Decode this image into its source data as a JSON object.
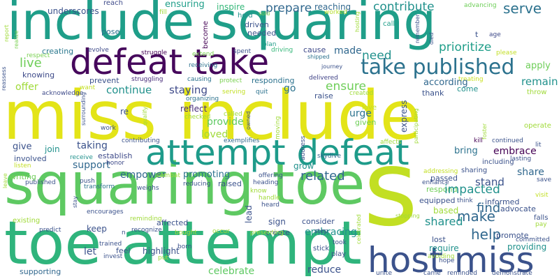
{
  "words": [
    {
      "text": "include squaring",
      "color": "#1f9e89",
      "orientation": "horizontal"
    },
    {
      "text": "miss include",
      "color": "#e3e418",
      "orientation": "horizontal"
    },
    {
      "text": "squaring toe",
      "color": "#5ec962",
      "orientation": "horizontal"
    },
    {
      "text": "toe attempt",
      "color": "#2fb47c",
      "orientation": "horizontal"
    },
    {
      "text": "s",
      "color": "#c2df23",
      "orientation": "vertical"
    },
    {
      "text": "attempt defeat",
      "color": "#1e9b8a",
      "orientation": "horizontal"
    },
    {
      "text": "defeat take",
      "color": "#46085c",
      "orientation": "horizontal"
    },
    {
      "text": "host miss",
      "color": "#3b528b",
      "orientation": "horizontal"
    },
    {
      "text": "take published",
      "color": "#2c728e",
      "orientation": "horizontal"
    },
    {
      "text": "prepare",
      "color": "#31688e",
      "orientation": "horizontal"
    },
    {
      "text": "contribute",
      "color": "#21918c",
      "orientation": "horizontal"
    },
    {
      "text": "serve",
      "color": "#2c728e",
      "orientation": "horizontal"
    },
    {
      "text": "ensuring",
      "color": "#1f9e89",
      "orientation": "horizontal"
    },
    {
      "text": "inspire",
      "color": "#35b779",
      "orientation": "horizontal"
    },
    {
      "text": "reaching",
      "color": "#31688e",
      "orientation": "horizontal"
    },
    {
      "text": "underscores",
      "color": "#3b528b",
      "orientation": "horizontal"
    },
    {
      "text": "reach",
      "color": "#3e4a89",
      "orientation": "horizontal"
    },
    {
      "text": "call",
      "color": "#1f9e89",
      "orientation": "horizontal"
    },
    {
      "text": "advancing",
      "color": "#6ece58",
      "orientation": "horizontal"
    },
    {
      "text": "age",
      "color": "#3e4989",
      "orientation": "horizontal"
    },
    {
      "text": "hold",
      "color": "#21918c",
      "orientation": "horizontal"
    },
    {
      "text": "sold",
      "color": "#7ad151",
      "orientation": "horizontal"
    },
    {
      "text": "worked",
      "color": "#b5de2b",
      "orientation": "horizontal"
    },
    {
      "text": "fill",
      "color": "#a0da39",
      "orientation": "horizontal"
    },
    {
      "text": "driven",
      "color": "#3b528b",
      "orientation": "horizontal"
    },
    {
      "text": "needed",
      "color": "#3b528b",
      "orientation": "horizontal"
    },
    {
      "text": "pose",
      "color": "#2c728e",
      "orientation": "horizontal"
    },
    {
      "text": "become",
      "color": "#440154",
      "orientation": "vertical"
    },
    {
      "text": "plan",
      "color": "#1f9e89",
      "orientation": "horizontal"
    },
    {
      "text": "driving",
      "color": "#35b779",
      "orientation": "horizontal"
    },
    {
      "text": "cause",
      "color": "#3e4989",
      "orientation": "horizontal"
    },
    {
      "text": "shipped",
      "color": "#2c728e",
      "orientation": "horizontal"
    },
    {
      "text": "journey",
      "color": "#3b528b",
      "orientation": "horizontal"
    },
    {
      "text": "creating",
      "color": "#2a788e",
      "orientation": "horizontal"
    },
    {
      "text": "evolve",
      "color": "#3e4a89",
      "orientation": "horizontal"
    },
    {
      "text": "struggle",
      "color": "#440154",
      "orientation": "horizontal"
    },
    {
      "text": "extend",
      "color": "#7ad151",
      "orientation": "horizontal"
    },
    {
      "text": "spent",
      "color": "#3b528b",
      "orientation": "horizontal"
    },
    {
      "text": "made",
      "color": "#31688e",
      "orientation": "horizontal"
    },
    {
      "text": "need",
      "color": "#21918c",
      "orientation": "horizontal"
    },
    {
      "text": "prioritize",
      "color": "#1f9e89",
      "orientation": "horizontal"
    },
    {
      "text": "please",
      "color": "#c2df23",
      "orientation": "horizontal"
    },
    {
      "text": "respect",
      "color": "#7ad151",
      "orientation": "horizontal"
    },
    {
      "text": "live",
      "color": "#6ece58",
      "orientation": "horizontal"
    },
    {
      "text": "apply",
      "color": "#6ece58",
      "orientation": "horizontal"
    },
    {
      "text": "knowing",
      "color": "#3e4a89",
      "orientation": "horizontal"
    },
    {
      "text": "receiving",
      "color": "#2c728e",
      "orientation": "horizontal"
    },
    {
      "text": "causing",
      "color": "#2c728e",
      "orientation": "horizontal"
    },
    {
      "text": "responding",
      "color": "#2c728e",
      "orientation": "horizontal"
    },
    {
      "text": "delivered",
      "color": "#414487",
      "orientation": "horizontal"
    },
    {
      "text": "treating",
      "color": "#c8e020",
      "orientation": "horizontal"
    },
    {
      "text": "remain",
      "color": "#21918c",
      "orientation": "horizontal"
    },
    {
      "text": "prevent",
      "color": "#3b528b",
      "orientation": "horizontal"
    },
    {
      "text": "struggling",
      "color": "#472c7a",
      "orientation": "horizontal"
    },
    {
      "text": "protect",
      "color": "#7ad151",
      "orientation": "horizontal"
    },
    {
      "text": "ensure",
      "color": "#6ece58",
      "orientation": "horizontal"
    },
    {
      "text": "according",
      "color": "#31688e",
      "orientation": "horizontal"
    },
    {
      "text": "offer",
      "color": "#a0da39",
      "orientation": "horizontal"
    },
    {
      "text": "want",
      "color": "#c2df23",
      "orientation": "horizontal"
    },
    {
      "text": "continue",
      "color": "#21918c",
      "orientation": "horizontal"
    },
    {
      "text": "staying",
      "color": "#3e4a89",
      "orientation": "horizontal"
    },
    {
      "text": "serving",
      "color": "#c2df23",
      "orientation": "horizontal"
    },
    {
      "text": "quit",
      "color": "#2c728e",
      "orientation": "horizontal"
    },
    {
      "text": "go",
      "color": "#2c728e",
      "orientation": "horizontal"
    },
    {
      "text": "raise",
      "color": "#3b528b",
      "orientation": "horizontal"
    },
    {
      "text": "created",
      "color": "#a0da39",
      "orientation": "horizontal"
    },
    {
      "text": "thank",
      "color": "#3b528b",
      "orientation": "horizontal"
    },
    {
      "text": "come",
      "color": "#21918c",
      "orientation": "horizontal"
    },
    {
      "text": "throw",
      "color": "#a0da39",
      "orientation": "horizontal"
    },
    {
      "text": "acknowledge",
      "color": "#3e4a89",
      "orientation": "horizontal"
    },
    {
      "text": "organizing",
      "color": "#2c728e",
      "orientation": "horizontal"
    },
    {
      "text": "reflect",
      "color": "#472c7a",
      "orientation": "horizontal"
    },
    {
      "text": "provide",
      "color": "#5ec962",
      "orientation": "horizontal"
    },
    {
      "text": "urge",
      "color": "#2c728e",
      "orientation": "horizontal"
    },
    {
      "text": "love",
      "color": "#c2df23",
      "orientation": "horizontal"
    },
    {
      "text": "given",
      "color": "#6ece58",
      "orientation": "horizontal"
    },
    {
      "text": "re",
      "color": "#3b528b",
      "orientation": "horizontal"
    },
    {
      "text": "called",
      "color": "#a0da39",
      "orientation": "horizontal"
    },
    {
      "text": "checked",
      "color": "#a0da39",
      "orientation": "horizontal"
    },
    {
      "text": "work",
      "color": "#3b528b",
      "orientation": "horizontal"
    },
    {
      "text": "loved",
      "color": "#a0da39",
      "orientation": "horizontal"
    },
    {
      "text": "express",
      "color": "#3b528b",
      "orientation": "vertical"
    },
    {
      "text": "operate",
      "color": "#a0da39",
      "orientation": "horizontal"
    },
    {
      "text": "contributing",
      "color": "#3b528b",
      "orientation": "horizontal"
    },
    {
      "text": "exemplifies",
      "color": "#31688e",
      "orientation": "horizontal"
    },
    {
      "text": "give",
      "color": "#3b528b",
      "orientation": "horizontal"
    },
    {
      "text": "taking",
      "color": "#3b528b",
      "orientation": "horizontal"
    },
    {
      "text": "join",
      "color": "#21918c",
      "orientation": "horizontal"
    },
    {
      "text": "establish",
      "color": "#3e4a89",
      "orientation": "horizontal"
    },
    {
      "text": "support",
      "color": "#31688e",
      "orientation": "horizontal"
    },
    {
      "text": "skydive",
      "color": "#31688e",
      "orientation": "horizontal"
    },
    {
      "text": "kill",
      "color": "#440154",
      "orientation": "horizontal"
    },
    {
      "text": "continued",
      "color": "#3b528b",
      "orientation": "horizontal"
    },
    {
      "text": "lit",
      "color": "#3b528b",
      "orientation": "horizontal"
    },
    {
      "text": "embrace",
      "color": "#440154",
      "orientation": "horizontal"
    },
    {
      "text": "bring",
      "color": "#2c728e",
      "orientation": "horizontal"
    },
    {
      "text": "involved",
      "color": "#3b528b",
      "orientation": "horizontal"
    },
    {
      "text": "receive",
      "color": "#21918c",
      "orientation": "horizontal"
    },
    {
      "text": "honor",
      "color": "#3e4a89",
      "orientation": "horizontal"
    },
    {
      "text": "grow",
      "color": "#21918c",
      "orientation": "horizontal"
    },
    {
      "text": "including",
      "color": "#3b528b",
      "orientation": "horizontal"
    },
    {
      "text": "lasting",
      "color": "#3b528b",
      "orientation": "horizontal"
    },
    {
      "text": "empower",
      "color": "#31688e",
      "orientation": "horizontal"
    },
    {
      "text": "related",
      "color": "#31688e",
      "orientation": "horizontal"
    },
    {
      "text": "share",
      "color": "#31688e",
      "orientation": "horizontal"
    },
    {
      "text": "sharing",
      "color": "#3b528b",
      "orientation": "horizontal"
    },
    {
      "text": "listen",
      "color": "#c2df23",
      "orientation": "horizontal"
    },
    {
      "text": "writing",
      "color": "#6ece58",
      "orientation": "horizontal"
    },
    {
      "text": "published",
      "color": "#3b528b",
      "orientation": "horizontal"
    },
    {
      "text": "push",
      "color": "#3b528b",
      "orientation": "horizontal"
    },
    {
      "text": "transform",
      "color": "#2c728e",
      "orientation": "horizontal"
    },
    {
      "text": "combat",
      "color": "#a0da39",
      "orientation": "horizontal"
    },
    {
      "text": "promoting",
      "color": "#2c728e",
      "orientation": "horizontal"
    },
    {
      "text": "offering",
      "color": "#3b528b",
      "orientation": "horizontal"
    },
    {
      "text": "addressing",
      "color": "#c2df23",
      "orientation": "horizontal"
    },
    {
      "text": "reducing",
      "color": "#3b528b",
      "orientation": "horizontal"
    },
    {
      "text": "raised",
      "color": "#3b528b",
      "orientation": "horizontal"
    },
    {
      "text": "heading",
      "color": "#3b528b",
      "orientation": "horizontal"
    },
    {
      "text": "passed",
      "color": "#3b528b",
      "orientation": "horizontal"
    },
    {
      "text": "respond",
      "color": "#6ece58",
      "orientation": "horizontal"
    },
    {
      "text": "stand",
      "color": "#3b528b",
      "orientation": "horizontal"
    },
    {
      "text": "save",
      "color": "#3b528b",
      "orientation": "horizontal"
    },
    {
      "text": "know",
      "color": "#a0da39",
      "orientation": "horizontal"
    },
    {
      "text": "handle",
      "color": "#a0da39",
      "orientation": "horizontal"
    },
    {
      "text": "impacted",
      "color": "#21918c",
      "orientation": "horizontal"
    },
    {
      "text": "visit",
      "color": "#c2df23",
      "orientation": "horizontal"
    },
    {
      "text": "weighs",
      "color": "#3b528b",
      "orientation": "horizontal"
    },
    {
      "text": "lead",
      "color": "#3b528b",
      "orientation": "vertical"
    },
    {
      "text": "think",
      "color": "#3b528b",
      "orientation": "horizontal"
    },
    {
      "text": "equipped",
      "color": "#3b528b",
      "orientation": "horizontal"
    },
    {
      "text": "informed",
      "color": "#3b528b",
      "orientation": "horizontal"
    },
    {
      "text": "find",
      "color": "#31688e",
      "orientation": "horizontal"
    },
    {
      "text": "heard",
      "color": "#3b528b",
      "orientation": "horizontal"
    },
    {
      "text": "advocate",
      "color": "#3b528b",
      "orientation": "horizontal"
    },
    {
      "text": "based",
      "color": "#a0da39",
      "orientation": "horizontal"
    },
    {
      "text": "falls",
      "color": "#3b528b",
      "orientation": "horizontal"
    },
    {
      "text": "encourages",
      "color": "#3b528b",
      "orientation": "horizontal"
    },
    {
      "text": "reminding",
      "color": "#a0da39",
      "orientation": "horizontal"
    },
    {
      "text": "sign",
      "color": "#3b528b",
      "orientation": "horizontal"
    },
    {
      "text": "consider",
      "color": "#3b528b",
      "orientation": "horizontal"
    },
    {
      "text": "make",
      "color": "#31688e",
      "orientation": "horizontal"
    },
    {
      "text": "shared",
      "color": "#21918c",
      "orientation": "horizontal"
    },
    {
      "text": "pay",
      "color": "#a0da39",
      "orientation": "horizontal"
    },
    {
      "text": "existing",
      "color": "#a0da39",
      "orientation": "horizontal"
    },
    {
      "text": "keep",
      "color": "#3b528b",
      "orientation": "horizontal"
    },
    {
      "text": "affected",
      "color": "#3b528b",
      "orientation": "horizontal"
    },
    {
      "text": "recognize",
      "color": "#3b528b",
      "orientation": "horizontal"
    },
    {
      "text": "predict",
      "color": "#3b528b",
      "orientation": "horizontal"
    },
    {
      "text": "n",
      "color": "#3b528b",
      "orientation": "horizontal"
    },
    {
      "text": "bought",
      "color": "#a0da39",
      "orientation": "horizontal"
    },
    {
      "text": "occur",
      "color": "#a0da39",
      "orientation": "horizontal"
    },
    {
      "text": "create",
      "color": "#3b528b",
      "orientation": "horizontal"
    },
    {
      "text": "embracing",
      "color": "#21918c",
      "orientation": "horizontal"
    },
    {
      "text": "help",
      "color": "#31688e",
      "orientation": "horizontal"
    },
    {
      "text": "presenting",
      "color": "#a0da39",
      "orientation": "horizontal"
    },
    {
      "text": "step",
      "color": "#3b528b",
      "orientation": "horizontal"
    },
    {
      "text": "promote",
      "color": "#3b528b",
      "orientation": "horizontal"
    },
    {
      "text": "lost",
      "color": "#3b528b",
      "orientation": "horizontal"
    },
    {
      "text": "committed",
      "color": "#3b528b",
      "orientation": "horizontal"
    },
    {
      "text": "trained",
      "color": "#3b528b",
      "orientation": "horizontal"
    },
    {
      "text": "born",
      "color": "#3b528b",
      "orientation": "horizontal"
    },
    {
      "text": "took",
      "color": "#3b528b",
      "orientation": "horizontal"
    },
    {
      "text": "require",
      "color": "#21918c",
      "orientation": "horizontal"
    },
    {
      "text": "providing",
      "color": "#21918c",
      "orientation": "horizontal"
    },
    {
      "text": "let",
      "color": "#3b528b",
      "orientation": "horizontal"
    },
    {
      "text": "feel",
      "color": "#3b528b",
      "orientation": "horizontal"
    },
    {
      "text": "highlight",
      "color": "#3b528b",
      "orientation": "horizontal"
    },
    {
      "text": "invest",
      "color": "#3b528b",
      "orientation": "horizontal"
    },
    {
      "text": "put",
      "color": "#a0da39",
      "orientation": "horizontal"
    },
    {
      "text": "stick",
      "color": "#3b528b",
      "orientation": "horizontal"
    },
    {
      "text": "play",
      "color": "#3b528b",
      "orientation": "horizontal"
    },
    {
      "text": "avoiding",
      "color": "#a0da39",
      "orientation": "horizontal"
    },
    {
      "text": "hope",
      "color": "#3b528b",
      "orientation": "horizontal"
    },
    {
      "text": "celebrate",
      "color": "#5ec962",
      "orientation": "horizontal"
    },
    {
      "text": "reduce",
      "color": "#3b528b",
      "orientation": "horizontal"
    },
    {
      "text": "supporting",
      "color": "#31688e",
      "orientation": "horizontal"
    },
    {
      "text": "unite",
      "color": "#3b528b",
      "orientation": "horizontal"
    },
    {
      "text": "came",
      "color": "#3b528b",
      "orientation": "horizontal"
    },
    {
      "text": "reminded",
      "color": "#3b528b",
      "orientation": "horizontal"
    },
    {
      "text": "demonstrate",
      "color": "#3b528b",
      "orientation": "horizontal"
    },
    {
      "text": "realize",
      "color": "#7ad151",
      "orientation": "vertical"
    },
    {
      "text": "report",
      "color": "#a0da39",
      "orientation": "vertical"
    },
    {
      "text": "reassess",
      "color": "#3b528b",
      "orientation": "vertical"
    },
    {
      "text": "surrounding",
      "color": "#3b528b",
      "orientation": "vertical"
    },
    {
      "text": "qualify",
      "color": "#a0da39",
      "orientation": "vertical"
    },
    {
      "text": "stay",
      "color": "#3b528b",
      "orientation": "vertical"
    },
    {
      "text": "leave",
      "color": "#a0da39",
      "orientation": "vertical"
    },
    {
      "text": "owned",
      "color": "#3b528b",
      "orientation": "vertical"
    },
    {
      "text": "moving",
      "color": "#a0da39",
      "orientation": "vertical"
    },
    {
      "text": "address",
      "color": "#3b528b",
      "orientation": "vertical"
    },
    {
      "text": "hosting",
      "color": "#a0da39",
      "orientation": "vertical"
    },
    {
      "text": "remember",
      "color": "#3b528b",
      "orientation": "vertical"
    },
    {
      "text": "died",
      "color": "#3b528b",
      "orientation": "vertical"
    },
    {
      "text": "participating",
      "color": "#a0da39",
      "orientation": "vertical"
    },
    {
      "text": "affects",
      "color": "#a0da39",
      "orientation": "horizontal"
    },
    {
      "text": "enhance",
      "color": "#3b528b",
      "orientation": "horizontal"
    },
    {
      "text": "foster",
      "color": "#a0da39",
      "orientation": "vertical"
    },
    {
      "text": "celebrated",
      "color": "#a0da39",
      "orientation": "vertical"
    },
    {
      "text": "stopping",
      "color": "#a0da39",
      "orientation": "horizontal"
    },
    {
      "text": "t",
      "color": "#3b528b",
      "orientation": "horizontal"
    }
  ]
}
